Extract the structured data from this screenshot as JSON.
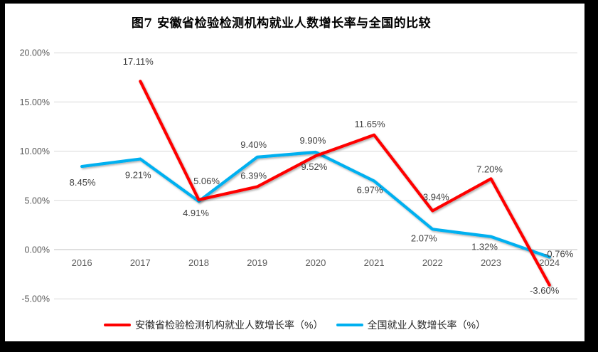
{
  "window": {
    "title": "图7 安徽省检验检测机构就业人数增长率与全国的比较"
  },
  "chart_data": {
    "type": "line",
    "title": "图7 安徽省检验检测机构就业人数增长率与全国的比较",
    "categories": [
      "2016",
      "2017",
      "2018",
      "2019",
      "2020",
      "2021",
      "2022",
      "2023",
      "2024"
    ],
    "series": [
      {
        "name": "安徽省检验检测机构就业人数增长率（%）",
        "color": "#FE0000",
        "values": [
          null,
          17.11,
          5.06,
          6.39,
          9.52,
          11.65,
          3.94,
          7.2,
          -3.6
        ],
        "label_offsets": [
          null,
          [
            -3,
            -23
          ],
          [
            11,
            -22
          ],
          [
            -5,
            -11
          ],
          [
            -2,
            20
          ],
          [
            -6,
            -11
          ],
          [
            5,
            -15
          ],
          [
            -2,
            -9
          ],
          [
            -7,
            12
          ]
        ]
      },
      {
        "name": "全国就业人数增长率（%）",
        "color": "#00B0F0",
        "values": [
          8.45,
          9.21,
          4.91,
          9.4,
          9.9,
          6.97,
          2.07,
          1.32,
          -0.76
        ],
        "label_offsets": [
          [
            1,
            27
          ],
          [
            -3,
            27
          ],
          [
            -4,
            21
          ],
          [
            -5,
            -13
          ],
          [
            -4,
            -12
          ],
          [
            -6,
            17
          ],
          [
            -12,
            17
          ],
          [
            -9,
            19
          ],
          [
            13,
            0
          ]
        ]
      }
    ],
    "y_ticks": [
      20,
      15,
      10,
      5,
      0,
      -5
    ],
    "ylim": [
      -5,
      20
    ],
    "y_tick_format": "0.00%",
    "x_axis_labels": [
      "2016",
      "2017",
      "2018",
      "2019",
      "2020",
      "2021",
      "2022",
      "2023",
      "2024"
    ],
    "grid": "horizontal",
    "legend_position": "bottom",
    "colors": {
      "grid": "#D9D9D9",
      "zero_line": "#BFBFBF",
      "axis_text": "#595959",
      "data_label": "#404040",
      "background": "#FFFFFF",
      "frame": "#000000"
    }
  }
}
